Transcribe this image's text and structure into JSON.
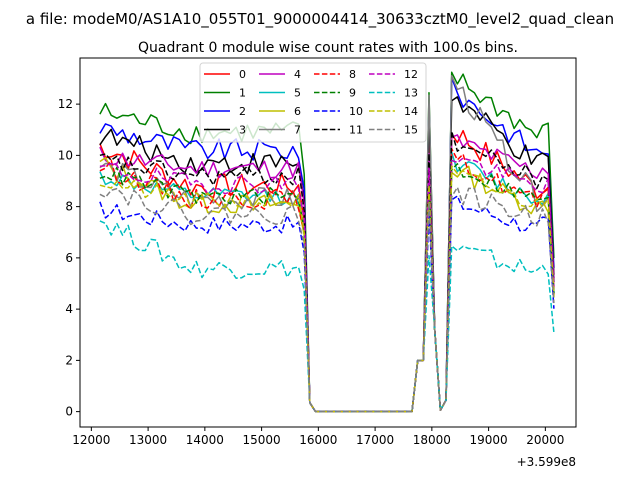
{
  "figure": {
    "suptitle": "a file: modeM0/AS1A10_055T01_9000004414_30633cztM0_level2_quad_clean"
  },
  "chart_data": {
    "type": "line",
    "title": "Quadrant 0 module wise count rates with 100.0s bins.",
    "xlabel": "",
    "ylabel": "",
    "x_offset_label": "+3.599e8",
    "xlim": [
      11800,
      20540
    ],
    "ylim": [
      -0.6,
      13.8
    ],
    "xticks": [
      12000,
      13000,
      14000,
      15000,
      16000,
      17000,
      18000,
      19000,
      20000
    ],
    "yticks": [
      0,
      2,
      4,
      6,
      8,
      10,
      12
    ],
    "grid": false,
    "legend": {
      "location": "top-center",
      "columns": 4
    },
    "x_start": 12150,
    "x_step": 100,
    "n_points": 81,
    "series": [
      {
        "name": "0",
        "color": "#ff0000",
        "linestyle": "solid",
        "base": 8.8,
        "start": 10.4,
        "peak": 11.0,
        "variation": 0.5
      },
      {
        "name": "1",
        "color": "#008000",
        "linestyle": "solid",
        "base": 10.9,
        "start": 11.7,
        "peak": 13.1,
        "variation": 0.45
      },
      {
        "name": "2",
        "color": "#0000ff",
        "linestyle": "solid",
        "base": 10.2,
        "start": 11.1,
        "peak": 12.6,
        "variation": 0.45
      },
      {
        "name": "3",
        "color": "#000000",
        "linestyle": "solid",
        "base": 9.7,
        "start": 10.8,
        "peak": 12.3,
        "variation": 0.45
      },
      {
        "name": "4",
        "color": "#bf00bf",
        "linestyle": "solid",
        "base": 9.5,
        "start": 10.0,
        "peak": 10.6,
        "variation": 0.4
      },
      {
        "name": "5",
        "color": "#00bfbf",
        "linestyle": "solid",
        "base": 8.4,
        "start": 9.2,
        "peak": 9.8,
        "variation": 0.35
      },
      {
        "name": "6",
        "color": "#bfbf00",
        "linestyle": "solid",
        "base": 8.1,
        "start": 9.7,
        "peak": 9.5,
        "variation": 0.4
      },
      {
        "name": "7",
        "color": "#808080",
        "linestyle": "solid",
        "base": 8.3,
        "start": 9.6,
        "peak": 13.0,
        "variation": 0.45
      },
      {
        "name": "8",
        "color": "#ff0000",
        "linestyle": "dashed",
        "base": 8.3,
        "start": 9.6,
        "peak": 9.9,
        "variation": 0.4
      },
      {
        "name": "9",
        "color": "#008000",
        "linestyle": "dashed",
        "base": 8.4,
        "start": 9.4,
        "peak": 9.6,
        "variation": 0.35
      },
      {
        "name": "10",
        "color": "#0000ff",
        "linestyle": "dashed",
        "base": 7.3,
        "start": 7.9,
        "peak": 8.2,
        "variation": 0.35
      },
      {
        "name": "11",
        "color": "#000000",
        "linestyle": "dashed",
        "base": 9.2,
        "start": 9.8,
        "peak": 10.6,
        "variation": 0.4
      },
      {
        "name": "12",
        "color": "#bf00bf",
        "linestyle": "dashed",
        "base": 8.9,
        "start": 9.5,
        "peak": 10.0,
        "variation": 0.4
      },
      {
        "name": "13",
        "color": "#00bfbf",
        "linestyle": "dashed",
        "base": 5.6,
        "start": 7.5,
        "peak": 6.4,
        "variation": 0.4
      },
      {
        "name": "14",
        "color": "#bfbf00",
        "linestyle": "dashed",
        "base": 8.2,
        "start": 9.0,
        "peak": 9.3,
        "variation": 0.35
      },
      {
        "name": "15",
        "color": "#808080",
        "linestyle": "dashed",
        "base": 7.7,
        "start": 8.8,
        "peak": 8.6,
        "variation": 0.4
      }
    ]
  }
}
